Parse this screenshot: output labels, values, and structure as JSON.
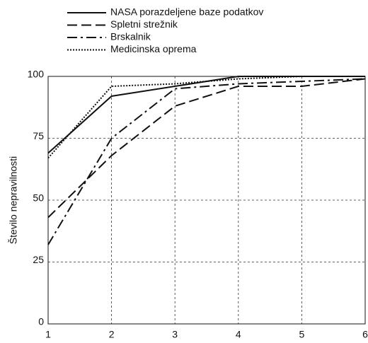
{
  "chart_data": {
    "type": "line",
    "y_label": "Število nepravilnosti",
    "x": [
      1,
      2,
      3,
      4,
      5,
      6
    ],
    "series": [
      {
        "name": "NASA porazdeljene baze podatkov",
        "color": "#111111",
        "dash": "solid",
        "values": [
          69,
          92,
          96,
          100,
          100,
          100
        ]
      },
      {
        "name": "Spletni strežnik",
        "color": "#111111",
        "dash": "dashed",
        "values": [
          43,
          68,
          88,
          96,
          96,
          99
        ]
      },
      {
        "name": "Brskalnik",
        "color": "#111111",
        "dash": "dashdot",
        "values": [
          32,
          75,
          95,
          97,
          98,
          99
        ]
      },
      {
        "name": "Medicinska oprema",
        "color": "#111111",
        "dash": "dotted",
        "values": [
          67,
          96,
          97,
          99,
          100,
          100
        ]
      }
    ],
    "xlim": [
      1,
      6
    ],
    "xticks": [
      1,
      2,
      3,
      4,
      5,
      6
    ],
    "ylim": [
      0,
      100
    ],
    "yticks": [
      0,
      25,
      50,
      75,
      100
    ],
    "grid": true
  }
}
